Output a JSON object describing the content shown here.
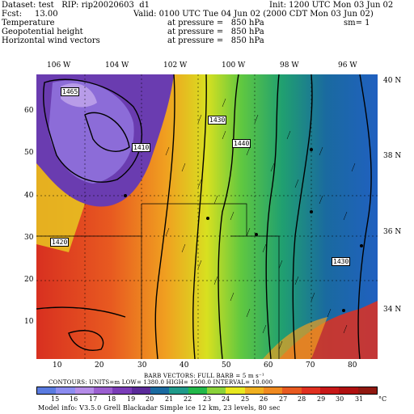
{
  "header": {
    "line1_left": "Dataset: test   RIP: rip20020603  d1",
    "line1_right": "Init: 1200 UTC Mon 03 Jun 02",
    "line2_left": "Fcst:     13.00",
    "line2_right": "Valid: 0100 UTC Tue 04 Jun 02 (2000 CDT Mon 03 Jun 02)",
    "line3_left": "Temperature",
    "line3_mid": "at pressure =   850 hPa",
    "line3_right": "sm= 1",
    "line4_left": "Geopotential height",
    "line4_mid": "at pressure =   850 hPa",
    "line5_left": "Horizontal wind vectors",
    "line5_mid": "at pressure =   850 hPa"
  },
  "lon_labels": [
    "106 W",
    "104 W",
    "102 W",
    "100 W",
    "98 W",
    "96 W"
  ],
  "lat_labels_right": [
    "40 N",
    "38 N",
    "36 N",
    "34 N"
  ],
  "grid_y_labels": [
    "60",
    "50",
    "40",
    "30",
    "20",
    "10"
  ],
  "grid_x_labels": [
    "10",
    "20",
    "30",
    "40",
    "50",
    "60",
    "70",
    "80"
  ],
  "contour_labels": [
    "1465",
    "1430",
    "1440",
    "1410",
    "1420",
    "1430"
  ],
  "footer": {
    "barb_line": "BARB VECTORS:  FULL BARB = 5 m s⁻¹",
    "contours_line": "CONTOURS:  UNITS=m   LOW=    1380.0       HIGH=    1500.0       INTERVAL=    10.000",
    "model_info": "Model info: V3.5.0   Grell      Blackadar   Simple ice     12 km,   23 levels,    80 sec"
  },
  "colorbar": {
    "labels": [
      "15",
      "16",
      "17",
      "18",
      "19",
      "20",
      "21",
      "22",
      "23",
      "24",
      "25",
      "26",
      "27",
      "28",
      "29",
      "30",
      "31"
    ],
    "unit": "°C",
    "colors": [
      "#5a7be0",
      "#8c8cf0",
      "#b58ce8",
      "#9b5fd0",
      "#7a3cb8",
      "#5a2a9a",
      "#1a6aa0",
      "#1f9a8a",
      "#22b84a",
      "#8ad23a",
      "#e8e820",
      "#f0b020",
      "#f08a20",
      "#e85a20",
      "#e03020",
      "#c81818",
      "#b01010",
      "#901810"
    ]
  }
}
